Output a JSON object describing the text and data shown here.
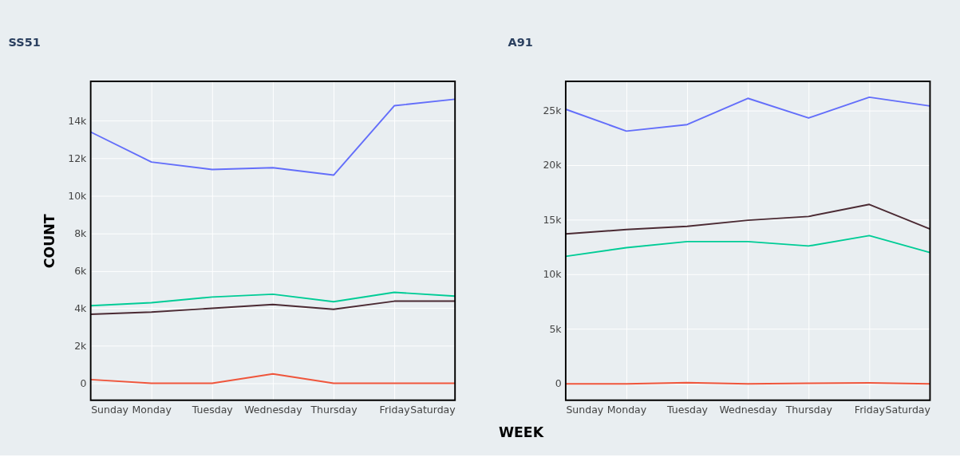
{
  "chart_data": [
    {
      "type": "line",
      "title": "SS51",
      "ylabel": "COUNT",
      "xlabel": "WEEK",
      "categories": [
        "Sunday",
        "Monday",
        "Tuesday",
        "Wednesday",
        "Thursday",
        "Friday",
        "Saturday"
      ],
      "series": [
        {
          "color": "#636efa",
          "values": [
            13400,
            11800,
            11400,
            11500,
            11100,
            14800,
            15150
          ]
        },
        {
          "color": "#ef553b",
          "values": [
            200,
            0,
            0,
            500,
            0,
            0,
            0
          ]
        },
        {
          "color": "#00cc96",
          "values": [
            4140,
            4300,
            4600,
            4750,
            4350,
            4850,
            4650
          ]
        },
        {
          "color": "#4b2a33",
          "values": [
            3680,
            3800,
            4000,
            4200,
            3950,
            4380,
            4380
          ]
        }
      ],
      "ylim": [
        -900,
        16100
      ],
      "yticks": [
        0,
        {
          "value": 2000,
          "label": "2k"
        },
        {
          "value": 4000,
          "label": "4k"
        },
        {
          "value": 6000,
          "label": "6k"
        },
        {
          "value": 8000,
          "label": "8k"
        },
        {
          "value": 10000,
          "label": "10k"
        },
        {
          "value": 12000,
          "label": "12k"
        },
        {
          "value": 14000,
          "label": "14k"
        }
      ],
      "grid": true,
      "line_style": "solid",
      "marker": "none"
    },
    {
      "type": "line",
      "title": "A91",
      "categories": [
        "Sunday",
        "Monday",
        "Tuesday",
        "Wednesday",
        "Thursday",
        "Friday",
        "Saturday"
      ],
      "series": [
        {
          "color": "#636efa",
          "values": [
            25100,
            23100,
            23700,
            26100,
            24300,
            26200,
            25400
          ]
        },
        {
          "color": "#ef553b",
          "values": [
            0,
            0,
            100,
            0,
            50,
            80,
            0
          ]
        },
        {
          "color": "#00cc96",
          "values": [
            11650,
            12450,
            13000,
            13000,
            12600,
            13550,
            12000
          ]
        },
        {
          "color": "#4b2a33",
          "values": [
            13700,
            14100,
            14400,
            14950,
            15300,
            16400,
            14150
          ]
        }
      ],
      "ylim": [
        -1500,
        27650
      ],
      "yticks": [
        0,
        {
          "value": 5000,
          "label": "5k"
        },
        {
          "value": 10000,
          "label": "10k"
        },
        {
          "value": 15000,
          "label": "15k"
        },
        {
          "value": 20000,
          "label": "20k"
        },
        {
          "value": 25000,
          "label": "25k"
        }
      ],
      "grid": true,
      "line_style": "solid",
      "marker": "none"
    }
  ]
}
